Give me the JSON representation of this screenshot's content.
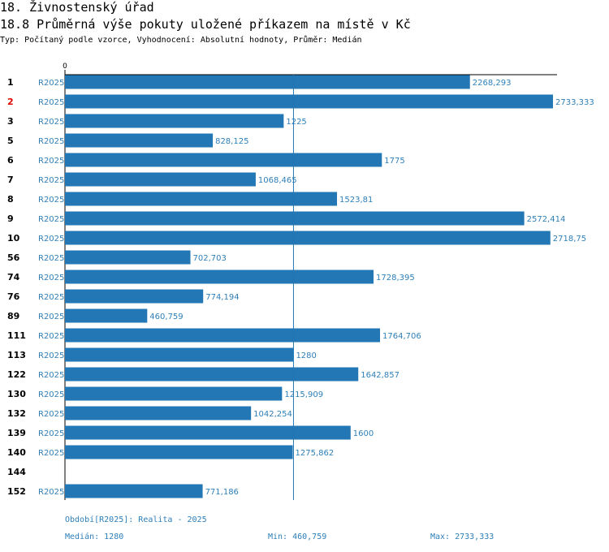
{
  "header": {
    "section": "18. Živnostenský úřad",
    "metric": "18.8 Průměrná výše pokuty uložené příkazem na místě v Kč",
    "type_line": "Typ: Počítaný podle vzorce, Vyhodnocení: Absolutní hodnoty, Průměr: Medián"
  },
  "colors": {
    "bar": "#2277b4",
    "value_text": "#2e7fb8",
    "highlight": "#e00000",
    "axis": "#000000"
  },
  "chart_data": {
    "type": "bar",
    "orientation": "horizontal",
    "axis_zero_label": "0",
    "xlim": [
      0,
      2733.333
    ],
    "median": 1280,
    "highlight_row": "2",
    "rows": [
      {
        "id": "1",
        "period": "R2025",
        "value": 2268.293,
        "label": "2268,293"
      },
      {
        "id": "2",
        "period": "R2025",
        "value": 2733.333,
        "label": "2733,333"
      },
      {
        "id": "3",
        "period": "R2025",
        "value": 1225,
        "label": "1225"
      },
      {
        "id": "5",
        "period": "R2025",
        "value": 828.125,
        "label": "828,125"
      },
      {
        "id": "6",
        "period": "R2025",
        "value": 1775,
        "label": "1775"
      },
      {
        "id": "7",
        "period": "R2025",
        "value": 1068.465,
        "label": "1068,465"
      },
      {
        "id": "8",
        "period": "R2025",
        "value": 1523.81,
        "label": "1523,81"
      },
      {
        "id": "9",
        "period": "R2025",
        "value": 2572.414,
        "label": "2572,414"
      },
      {
        "id": "10",
        "period": "R2025",
        "value": 2718.75,
        "label": "2718,75"
      },
      {
        "id": "56",
        "period": "R2025",
        "value": 702.703,
        "label": "702,703"
      },
      {
        "id": "74",
        "period": "R2025",
        "value": 1728.395,
        "label": "1728,395"
      },
      {
        "id": "76",
        "period": "R2025",
        "value": 774.194,
        "label": "774,194"
      },
      {
        "id": "89",
        "period": "R2025",
        "value": 460.759,
        "label": "460,759"
      },
      {
        "id": "111",
        "period": "R2025",
        "value": 1764.706,
        "label": "1764,706"
      },
      {
        "id": "113",
        "period": "R2025",
        "value": 1280,
        "label": "1280"
      },
      {
        "id": "122",
        "period": "R2025",
        "value": 1642.857,
        "label": "1642,857"
      },
      {
        "id": "130",
        "period": "R2025",
        "value": 1215.909,
        "label": "1215,909"
      },
      {
        "id": "132",
        "period": "R2025",
        "value": 1042.254,
        "label": "1042,254"
      },
      {
        "id": "139",
        "period": "R2025",
        "value": 1600,
        "label": "1600"
      },
      {
        "id": "140",
        "period": "R2025",
        "value": 1275.862,
        "label": "1275,862"
      },
      {
        "id": "144",
        "period": "",
        "value": null,
        "label": ""
      },
      {
        "id": "152",
        "period": "R2025",
        "value": 771.186,
        "label": "771,186"
      }
    ]
  },
  "footer": {
    "period_legend": "Období[R2025]: Realita - 2025",
    "median": "Medián: 1280",
    "min": "Min: 460,759",
    "max": "Max: 2733,333"
  }
}
